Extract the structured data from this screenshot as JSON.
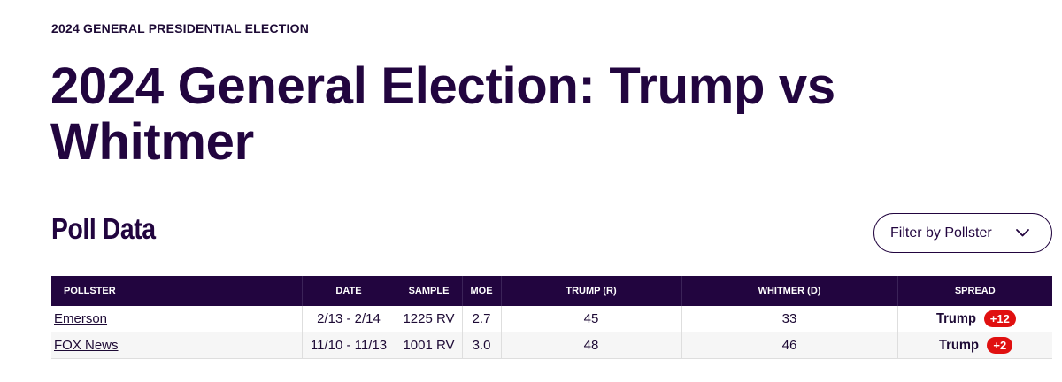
{
  "header": {
    "eyebrow": "2024 GENERAL PRESIDENTIAL ELECTION",
    "title": "2024 General Election: Trump vs Whitmer"
  },
  "section": {
    "title": "Poll Data",
    "filter_label": "Filter by Pollster",
    "filter_icon": "chevron-down-icon"
  },
  "table": {
    "columns": [
      "POLLSTER",
      "DATE",
      "SAMPLE",
      "MOE",
      "TRUMP (R)",
      "WHITMER (D)",
      "SPREAD"
    ],
    "rows": [
      {
        "pollster": "Emerson",
        "date": "2/13 - 2/14",
        "sample": "1225 RV",
        "moe": "2.7",
        "trump": "45",
        "whitmer": "33",
        "spread_winner": "Trump",
        "spread_value": "+12"
      },
      {
        "pollster": "FOX News",
        "date": "11/10 - 11/13",
        "sample": "1001 RV",
        "moe": "3.0",
        "trump": "48",
        "whitmer": "46",
        "spread_winner": "Trump",
        "spread_value": "+2"
      }
    ]
  },
  "colors": {
    "header_bg": "#22053f",
    "spread_badge": "#e01010"
  }
}
